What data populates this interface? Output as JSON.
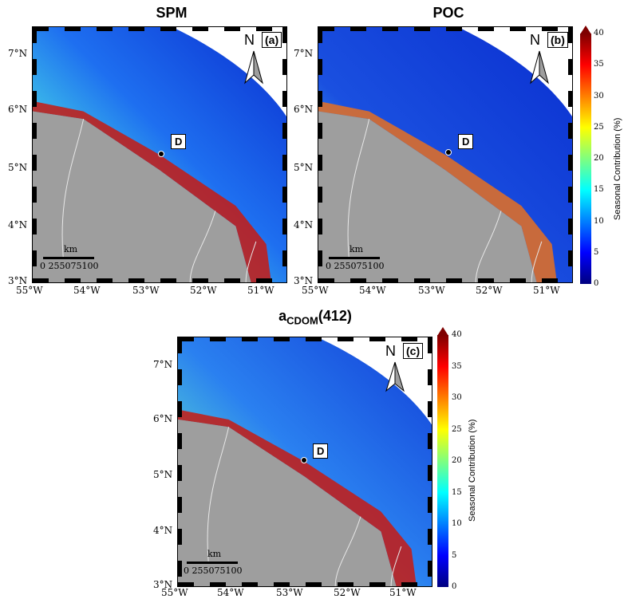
{
  "panels": [
    {
      "title": "SPM",
      "label": "(a)",
      "north": "N",
      "station": "D"
    },
    {
      "title": "POC",
      "label": "(b)",
      "north": "N",
      "station": "D"
    },
    {
      "title": "a_CDOM(412)",
      "title_main": "a",
      "title_sub": "CDOM",
      "title_rest": "(412)",
      "label": "(c)",
      "north": "N",
      "station": "D"
    }
  ],
  "axes": {
    "lon_labels": [
      "55°W",
      "54°W",
      "53°W",
      "52°W",
      "51°W"
    ],
    "lat_labels": [
      "7°N",
      "6°N",
      "5°N",
      "4°N",
      "3°N"
    ]
  },
  "scale_bar": {
    "unit": "km",
    "ticks": [
      "0",
      "25",
      "50",
      "75",
      "100"
    ]
  },
  "colorbar": {
    "title": "Seasonal Contribution (%)",
    "ticks": [
      "40",
      "35",
      "30",
      "25",
      "20",
      "15",
      "10",
      "5",
      "0"
    ],
    "range": [
      0,
      40
    ],
    "colors": [
      "#7f0000",
      "#ff0000",
      "#ff7f00",
      "#ffff00",
      "#7fff7f",
      "#00ffff",
      "#007fff",
      "#0000ff",
      "#00007f"
    ]
  },
  "colors": {
    "land": "#9e9e9e",
    "ocean_base": "#1a3fd6",
    "river": "#e8e8e8"
  }
}
